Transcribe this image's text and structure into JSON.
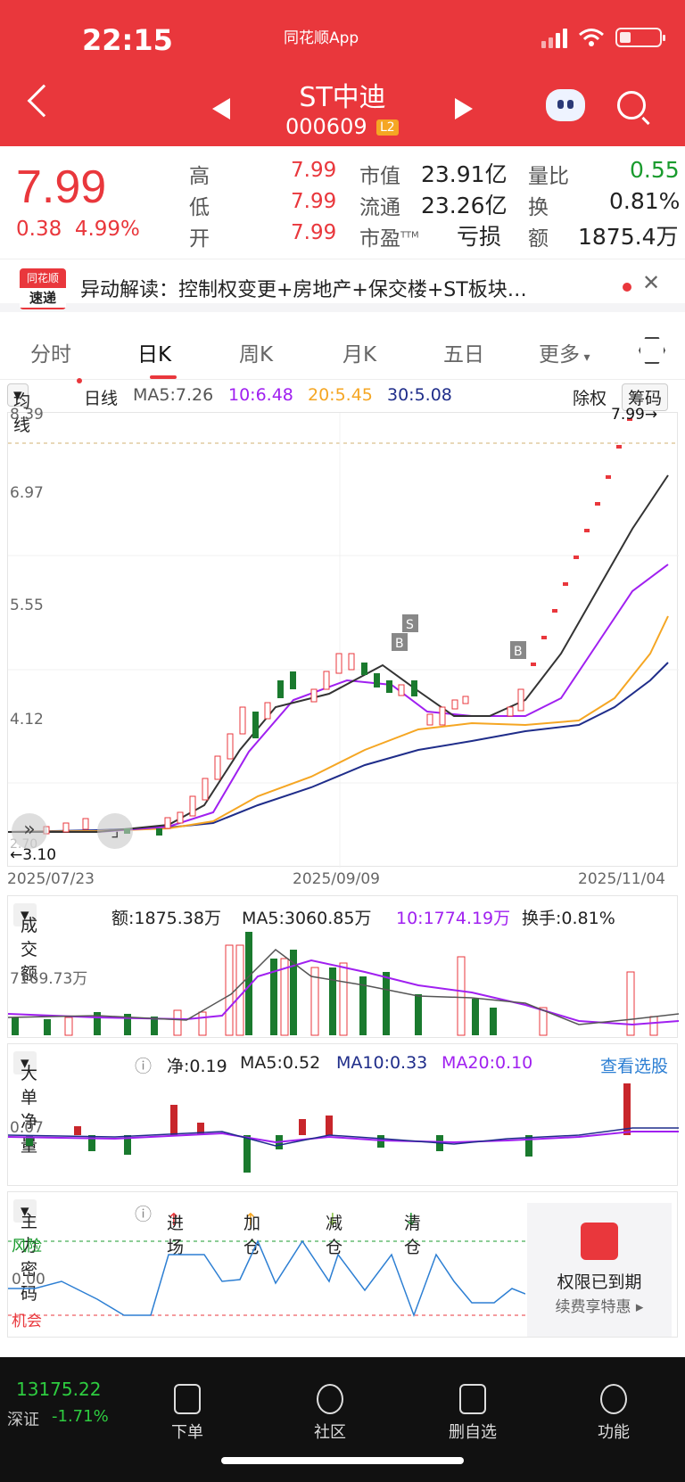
{
  "status": {
    "time": "22:15",
    "app": "同花顺App"
  },
  "header": {
    "name": "ST中迪",
    "code": "000609",
    "level": "L2"
  },
  "quote": {
    "price": "7.99",
    "change": "0.38",
    "change_pct": "4.99%",
    "high_label": "高",
    "high": "7.99",
    "low_label": "低",
    "low": "7.99",
    "open_label": "开",
    "open": "7.99",
    "mcap_label": "市值",
    "mcap": "23.91亿",
    "float_label": "流通",
    "float": "23.26亿",
    "pe_label": "市盈",
    "pe_sup": "TTM",
    "pe": "亏损",
    "vr_label": "量比",
    "vr": "0.55",
    "turn_label": "换",
    "turn": "0.81%",
    "amt_label": "额",
    "amt": "1875.4万"
  },
  "news": {
    "logo_top": "同花顺",
    "logo_bottom": "速递",
    "text": "异动解读：控制权变更+房地产+保交楼+ST板块…"
  },
  "tabs": [
    "分时",
    "日K",
    "周K",
    "月K",
    "五日",
    "更多"
  ],
  "ma_bar": {
    "select": "均线",
    "period": "日线",
    "ma5": "MA5:7.26",
    "ma10": "10:6.48",
    "ma20": "20:5.45",
    "ma30": "30:5.08",
    "adjust": "除权",
    "chips": "筹码"
  },
  "chart": {
    "y_labels": [
      "8.39",
      "6.97",
      "5.55",
      "4.12"
    ],
    "high_label": "7.99→",
    "low_label": "←3.10",
    "low_axis": "2.70",
    "dates": [
      "2025/07/23",
      "2025/09/09",
      "2025/11/04"
    ]
  },
  "volume": {
    "select": "成交额",
    "amt": "额:1875.38万",
    "ma5": "MA5:3060.85万",
    "ma10": "10:1774.19万",
    "turnover": "换手:0.81%",
    "y_label": "7169.73万"
  },
  "bignet": {
    "select": "大单净量",
    "net": "净:0.19",
    "ma5": "MA5:0.52",
    "ma10": "MA10:0.33",
    "ma20": "MA20:0.10",
    "link": "查看选股",
    "y_label": "0.07"
  },
  "secret": {
    "select": "主力密码",
    "legend": [
      "进场",
      "加仓",
      "减仓",
      "清仓"
    ],
    "risk": "风险",
    "zero": "0.00",
    "chance": "机会",
    "lock_title": "权限已到期",
    "lock_sub": "续费享特惠 ▸"
  },
  "bottom": {
    "index_value": "13175.22",
    "index_name": "深证",
    "index_change": "-1.71%",
    "nav": [
      "下单",
      "社区",
      "删自选",
      "功能"
    ]
  },
  "colors": {
    "red": "#e9373c",
    "green": "#1a9b2e",
    "ma5": "#333333",
    "ma10": "#a020f0",
    "ma20": "#f5a623",
    "ma30": "#1f2d8a"
  }
}
